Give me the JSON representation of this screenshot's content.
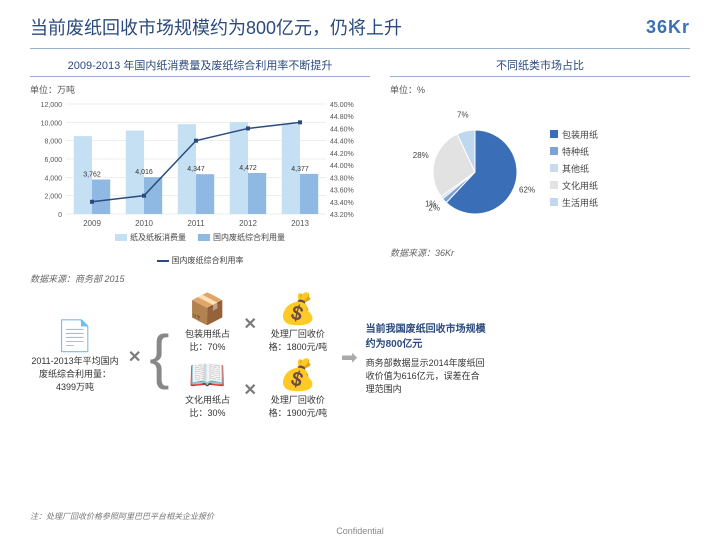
{
  "header": {
    "title": "当前废纸回收市场规模约为800亿元，仍将上升",
    "logo": "36Kr"
  },
  "combo": {
    "title": "2009-2013 年国内纸消费量及废纸综合利用率不断提升",
    "unit": "单位：万吨",
    "type": "bar+line",
    "years": [
      "2009",
      "2010",
      "2011",
      "2012",
      "2013"
    ],
    "left_axis": {
      "min": 0,
      "max": 12000,
      "step": 2000
    },
    "right_axis": {
      "ticks": [
        "45.00%",
        "44.80%",
        "44.60%",
        "44.40%",
        "44.20%",
        "44.00%",
        "43.80%",
        "43.60%",
        "43.40%",
        "43.20%"
      ]
    },
    "series_consumption": {
      "label": "纸及纸板消费量",
      "color": "#c5dff3",
      "values": [
        8500,
        9100,
        9800,
        10000,
        9800
      ]
    },
    "series_recycle_amt": {
      "label": "国内废纸综合利用量",
      "color": "#8fb9e3",
      "values": [
        3762,
        4016,
        4347,
        4472,
        4377
      ]
    },
    "series_rate": {
      "label": "国内废纸综合利用率",
      "color": "#2b4a7e",
      "values_pct": [
        43.4,
        43.5,
        44.4,
        44.6,
        44.7
      ]
    },
    "data_labels": [
      "3,762",
      "4,016",
      "4,347",
      "4,472",
      "4,377"
    ],
    "source": "数据来源：商务部 2015"
  },
  "pie": {
    "title": "不同纸类市场占比",
    "unit": "单位：%",
    "type": "pie",
    "slices": [
      {
        "label": "包装用纸",
        "value": 62,
        "color": "#3a6fb7"
      },
      {
        "label": "特种纸",
        "value": 2,
        "color": "#7da3d4"
      },
      {
        "label": "其他纸",
        "value": 1,
        "color": "#c9dbef"
      },
      {
        "label": "文化用纸",
        "value": 28,
        "color": "#e2e2e2"
      },
      {
        "label": "生活用纸",
        "value": 7,
        "color": "#bfd8ef"
      }
    ],
    "source": "数据来源：36Kr"
  },
  "flow": {
    "avg": {
      "icon": "📄",
      "text": "2011-2013年平均国内废纸综合利用量：4399万吨"
    },
    "pack": {
      "icon": "📦",
      "text": "包装用纸占比：70%"
    },
    "book": {
      "icon": "📖",
      "text": "文化用纸占比：30%"
    },
    "price1": {
      "icon": "💰",
      "text": "处理厂回收价格：1800元/吨"
    },
    "price2": {
      "icon": "💰",
      "text": "处理厂回收价格：1900元/吨"
    },
    "conclusion": "当前我国废纸回收市场规模约为800亿元",
    "note": "商务部数据显示2014年废纸回收价值为616亿元，误差在合理范围内",
    "footnote": "注：处理厂回收价格参照阿里巴巴平台相关企业报价",
    "confidential": "Confidential"
  }
}
